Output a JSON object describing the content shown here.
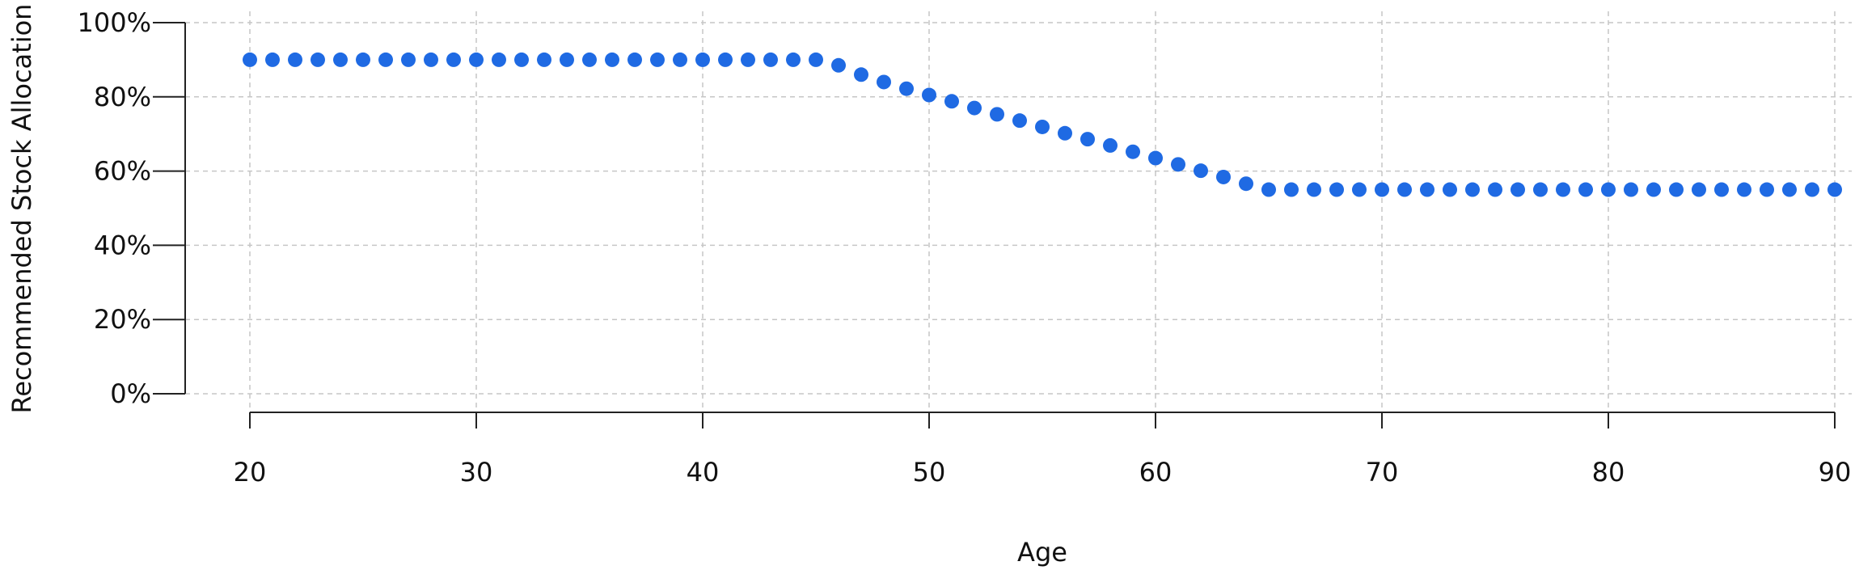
{
  "chart_data": {
    "type": "scatter",
    "title": "",
    "xlabel": "Age",
    "ylabel": "Recommended Stock Allocation",
    "xlim": [
      20,
      90
    ],
    "ylim": [
      0,
      100
    ],
    "x_ticks": [
      20,
      30,
      40,
      50,
      60,
      70,
      80,
      90
    ],
    "y_ticks": [
      0,
      20,
      40,
      60,
      80,
      100
    ],
    "y_tick_labels": [
      "0%",
      "20%",
      "40%",
      "60%",
      "80%",
      "100%"
    ],
    "grid": true,
    "legend": "none",
    "marker_color": "#1f6ae3",
    "series": [
      {
        "x": [
          20,
          21,
          22,
          23,
          24,
          25,
          26,
          27,
          28,
          29,
          30,
          31,
          32,
          33,
          34,
          35,
          36,
          37,
          38,
          39,
          40,
          41,
          42,
          43,
          44,
          45,
          46,
          47,
          48,
          49,
          50,
          51,
          52,
          53,
          54,
          55,
          56,
          57,
          58,
          59,
          60,
          61,
          62,
          63,
          64,
          65,
          66,
          67,
          68,
          69,
          70,
          71,
          72,
          73,
          74,
          75,
          76,
          77,
          78,
          79,
          80,
          81,
          82,
          83,
          84,
          85,
          86,
          87,
          88,
          89,
          90
        ],
        "y": [
          90,
          90,
          90,
          90,
          90,
          90,
          90,
          90,
          90,
          90,
          90,
          90,
          90,
          90,
          90,
          90,
          90,
          90,
          90,
          90,
          90,
          90,
          90,
          90,
          90,
          90,
          88.5,
          86,
          84,
          82.2,
          80.5,
          78.8,
          77,
          75.3,
          73.6,
          71.9,
          70.2,
          68.6,
          66.9,
          65.2,
          63.5,
          61.8,
          60.1,
          58.4,
          56.6,
          55,
          55,
          55,
          55,
          55,
          55,
          55,
          55,
          55,
          55,
          55,
          55,
          55,
          55,
          55,
          55,
          55,
          55,
          55,
          55,
          55,
          55,
          55,
          55,
          55,
          55
        ]
      }
    ]
  }
}
